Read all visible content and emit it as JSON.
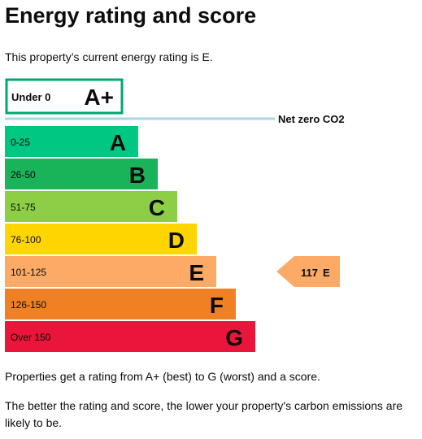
{
  "title": "Energy rating and score",
  "intro": "This property’s current energy rating is E.",
  "footer": {
    "line1": "Properties get a rating from A+ (best) to G (worst) and a score.",
    "line2": "The better the rating and score, the lower your property's carbon emissions are likely to be."
  },
  "chart_data": {
    "type": "bar",
    "bands": [
      {
        "range": "Under 0",
        "letter": "A+",
        "color": "#00a86b",
        "style": "outline"
      },
      {
        "range": "0-25",
        "letter": "A",
        "color": "#00c781"
      },
      {
        "range": "26-50",
        "letter": "B",
        "color": "#19b459"
      },
      {
        "range": "51-75",
        "letter": "C",
        "color": "#8dce46"
      },
      {
        "range": "76-100",
        "letter": "D",
        "color": "#ffd500"
      },
      {
        "range": "101-125",
        "letter": "E",
        "color": "#fcaa65"
      },
      {
        "range": "126-150",
        "letter": "F",
        "color": "#ef8023"
      },
      {
        "range": "Over 150",
        "letter": "G",
        "color": "#e9153b"
      }
    ],
    "reference_line": {
      "label": "Net zero CO2",
      "color": "#a9d5e6"
    },
    "current": {
      "score": 117,
      "letter": "E",
      "color": "#fcaa65"
    }
  }
}
